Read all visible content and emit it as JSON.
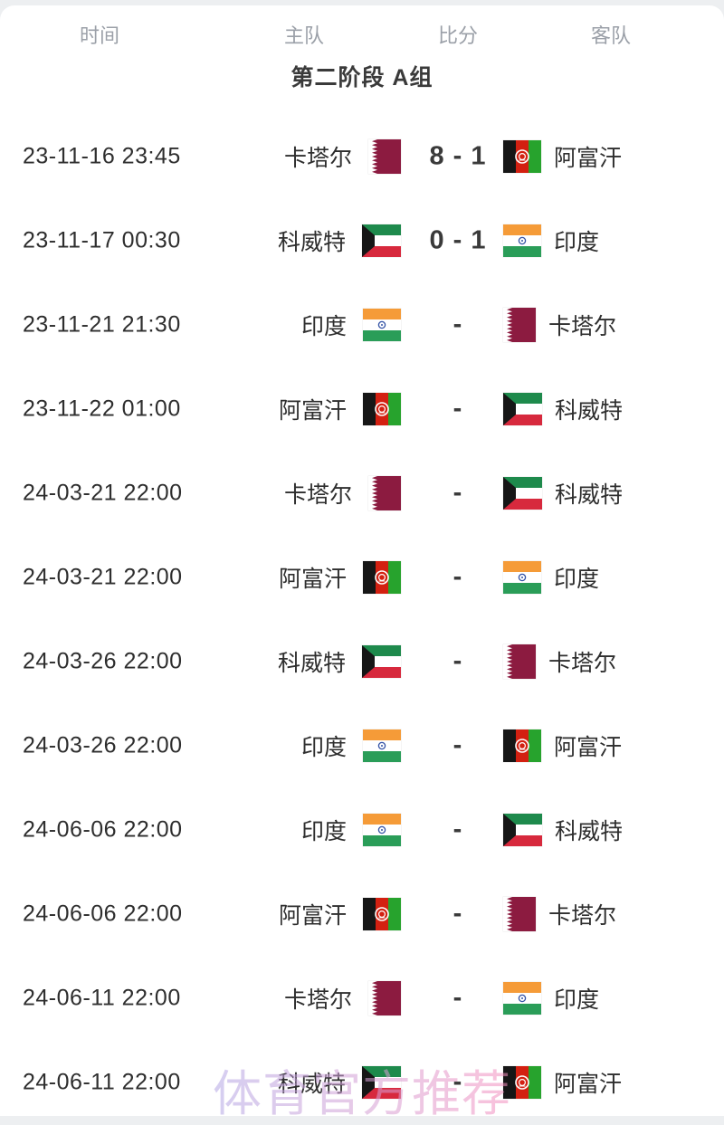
{
  "table": {
    "columns": [
      {
        "key": "time",
        "label": "时间"
      },
      {
        "key": "home",
        "label": "主队"
      },
      {
        "key": "score",
        "label": "比分"
      },
      {
        "key": "away",
        "label": "客队"
      }
    ],
    "group_title": "第二阶段 A组"
  },
  "matches": [
    {
      "time": "23-11-16 23:45",
      "home": {
        "name": "卡塔尔",
        "flag": "qatar"
      },
      "score": "8 - 1",
      "away": {
        "name": "阿富汗",
        "flag": "afghanistan"
      }
    },
    {
      "time": "23-11-17 00:30",
      "home": {
        "name": "科威特",
        "flag": "kuwait"
      },
      "score": "0 - 1",
      "away": {
        "name": "印度",
        "flag": "india"
      }
    },
    {
      "time": "23-11-21 21:30",
      "home": {
        "name": "印度",
        "flag": "india"
      },
      "score": "-",
      "away": {
        "name": "卡塔尔",
        "flag": "qatar"
      }
    },
    {
      "time": "23-11-22 01:00",
      "home": {
        "name": "阿富汗",
        "flag": "afghanistan"
      },
      "score": "-",
      "away": {
        "name": "科威特",
        "flag": "kuwait"
      }
    },
    {
      "time": "24-03-21 22:00",
      "home": {
        "name": "卡塔尔",
        "flag": "qatar"
      },
      "score": "-",
      "away": {
        "name": "科威特",
        "flag": "kuwait"
      }
    },
    {
      "time": "24-03-21 22:00",
      "home": {
        "name": "阿富汗",
        "flag": "afghanistan"
      },
      "score": "-",
      "away": {
        "name": "印度",
        "flag": "india"
      }
    },
    {
      "time": "24-03-26 22:00",
      "home": {
        "name": "科威特",
        "flag": "kuwait"
      },
      "score": "-",
      "away": {
        "name": "卡塔尔",
        "flag": "qatar"
      }
    },
    {
      "time": "24-03-26 22:00",
      "home": {
        "name": "印度",
        "flag": "india"
      },
      "score": "-",
      "away": {
        "name": "阿富汗",
        "flag": "afghanistan"
      }
    },
    {
      "time": "24-06-06 22:00",
      "home": {
        "name": "印度",
        "flag": "india"
      },
      "score": "-",
      "away": {
        "name": "科威特",
        "flag": "kuwait"
      }
    },
    {
      "time": "24-06-06 22:00",
      "home": {
        "name": "阿富汗",
        "flag": "afghanistan"
      },
      "score": "-",
      "away": {
        "name": "卡塔尔",
        "flag": "qatar"
      }
    },
    {
      "time": "24-06-11 22:00",
      "home": {
        "name": "卡塔尔",
        "flag": "qatar"
      },
      "score": "-",
      "away": {
        "name": "印度",
        "flag": "india"
      }
    },
    {
      "time": "24-06-11 22:00",
      "home": {
        "name": "科威特",
        "flag": "kuwait"
      },
      "score": "-",
      "away": {
        "name": "阿富汗",
        "flag": "afghanistan"
      }
    }
  ],
  "watermark": {
    "text": "体育官方推荐"
  },
  "colors": {
    "card_background": "#ffffff",
    "page_background": "#edeff1",
    "header_label": "#9ba0a8",
    "text_primary": "#2e2e2e",
    "score_text": "#3a3a3a",
    "watermark_start": "#b4a7e5",
    "watermark_end": "#f590bf",
    "flags": {
      "qatar": {
        "maroon": "#8c1b40",
        "white": "#ffffff"
      },
      "afghanistan": {
        "black": "#161616",
        "red": "#d32011",
        "green": "#27a32d",
        "emblem": "#ffffff"
      },
      "kuwait": {
        "green": "#1e8a4c",
        "white": "#ffffff",
        "red": "#d7293d",
        "black": "#161616"
      },
      "india": {
        "saffron": "#f59b38",
        "white": "#ffffff",
        "green": "#2a9d58",
        "chakra": "#3352a5"
      }
    }
  }
}
